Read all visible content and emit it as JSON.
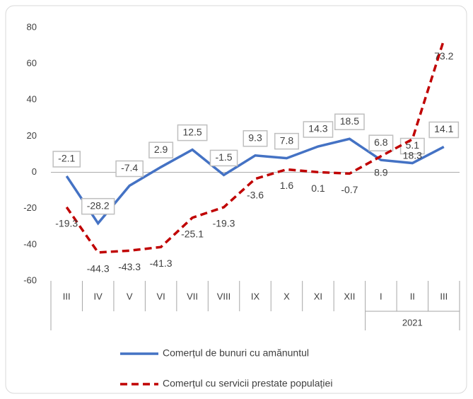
{
  "chart_data": {
    "type": "line",
    "categories": [
      "III",
      "IV",
      "V",
      "VI",
      "VII",
      "VIII",
      "IX",
      "X",
      "XI",
      "XII",
      "I",
      "II",
      "III"
    ],
    "group_label": "2021",
    "series": [
      {
        "name": "Comerțul de bunuri cu amănuntul",
        "color": "#4472c4",
        "dash": false,
        "values": [
          -2.1,
          -28.2,
          -7.4,
          2.9,
          12.5,
          -1.5,
          9.3,
          7.8,
          14.3,
          18.5,
          6.8,
          5.1,
          14.1
        ]
      },
      {
        "name": "Comerțul cu servicii prestate populației",
        "color": "#c00000",
        "dash": true,
        "values": [
          -19.3,
          -44.3,
          -43.3,
          -41.3,
          -25.1,
          -19.3,
          -3.6,
          1.6,
          0.1,
          -0.7,
          8.9,
          18.3,
          73.2
        ]
      }
    ],
    "ylim": [
      -60,
      80
    ],
    "yticks": [
      -60,
      -40,
      -20,
      0,
      20,
      40,
      60,
      80
    ]
  }
}
